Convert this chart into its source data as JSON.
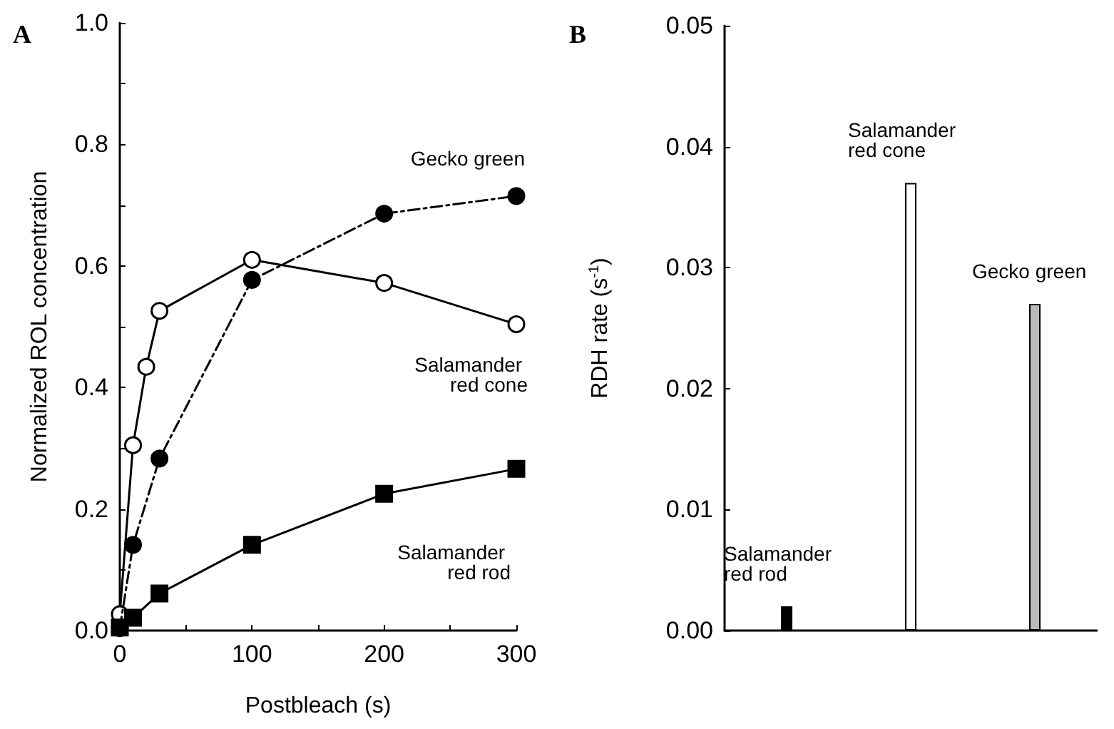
{
  "chart_data": [
    {
      "type": "line",
      "title": "A",
      "xlabel": "Postbleach (s)",
      "ylabel": "Normalized ROL concentration",
      "xlim": [
        0,
        300
      ],
      "ylim": [
        0,
        1
      ],
      "xticks": [
        0,
        {
          "value": 50,
          "label": null
        },
        100,
        {
          "value": 150,
          "label": null
        },
        200,
        {
          "value": 250,
          "label": null
        },
        300
      ],
      "yticks": [
        {
          "value": 0,
          "label": "0.0"
        },
        {
          "value": 0.1,
          "label": null
        },
        0.2,
        {
          "value": 0.3,
          "label": null
        },
        0.4,
        {
          "value": 0.5,
          "label": null
        },
        0.6,
        {
          "value": 0.7,
          "label": null
        },
        0.8,
        {
          "value": 0.9,
          "label": null
        },
        {
          "value": 1,
          "label": "1.0"
        }
      ],
      "grid": false,
      "legend": false,
      "series": [
        {
          "name": "Salamander red cone",
          "color": "#ffffff",
          "marker": "circle",
          "line_style": "solid",
          "x": [
            0,
            10,
            20,
            30,
            100,
            200,
            300
          ],
          "values": [
            0.027,
            0.305,
            0.434,
            0.526,
            0.61,
            0.572,
            0.504
          ]
        },
        {
          "name": "Gecko green",
          "color": "#000000",
          "marker": "circle",
          "line_style": "dashed",
          "x": [
            0,
            10,
            30,
            100,
            200,
            300
          ],
          "values": [
            0.004,
            0.141,
            0.283,
            0.577,
            0.686,
            0.715
          ]
        },
        {
          "name": "Salamander red rod",
          "color": "#000000",
          "marker": "square",
          "line_style": "solid",
          "x": [
            0,
            10,
            30,
            100,
            200,
            300
          ],
          "values": [
            0.005,
            0.021,
            0.061,
            0.141,
            0.225,
            0.266
          ]
        }
      ]
    },
    {
      "type": "bar",
      "title": "B",
      "ylabel": "RDH rate (s$^{-1}$)",
      "categories": [
        "Salamander red rod",
        "Salamander red cone",
        "Gecko green"
      ],
      "values": [
        0.002,
        0.037,
        0.027
      ],
      "colors": [
        "#000000",
        "#ffffff",
        "#bbbbbb"
      ],
      "ylim": [
        0,
        0.05
      ],
      "yticks": [
        {
          "value": 0,
          "label": "0.00"
        },
        0.01,
        0.02,
        0.03,
        0.04,
        0.05
      ],
      "grid": false,
      "legend": false
    }
  ]
}
